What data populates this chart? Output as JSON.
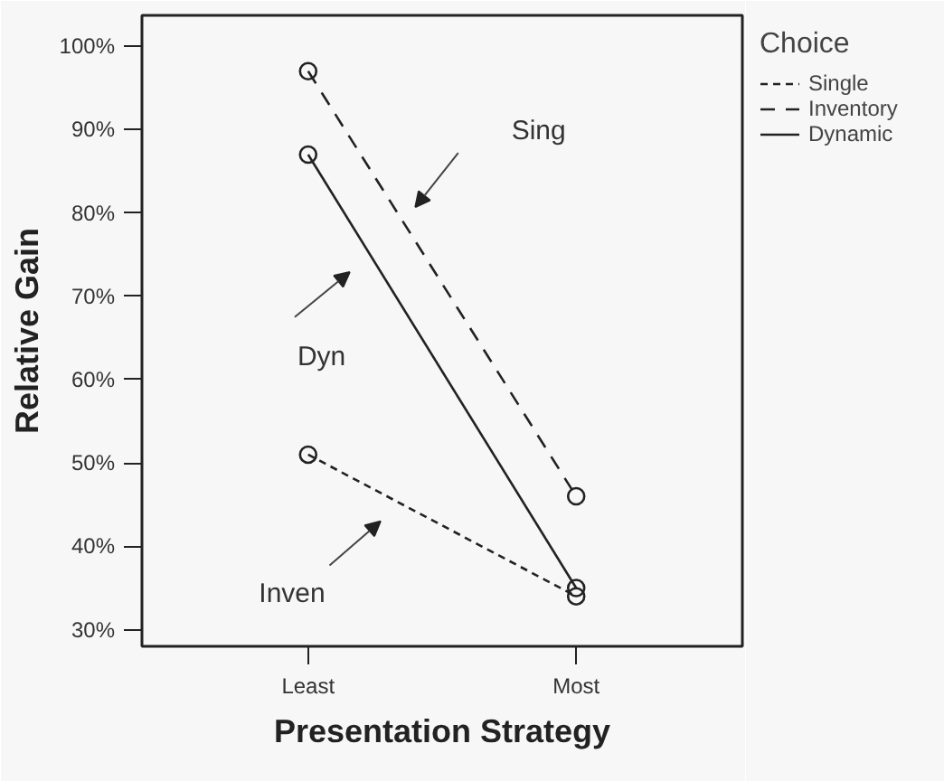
{
  "chart_data": {
    "type": "line",
    "xlabel": "Presentation Strategy",
    "ylabel": "Relative Gain",
    "legend_title": "Choice",
    "categories": [
      "Least",
      "Most"
    ],
    "series": [
      {
        "name": "Single",
        "color": "#222222",
        "line_style": "dotted",
        "values": [
          51,
          34
        ]
      },
      {
        "name": "Inventory",
        "color": "#222222",
        "line_style": "dashed",
        "values": [
          97,
          46
        ]
      },
      {
        "name": "Dynamic",
        "color": "#222222",
        "line_style": "solid",
        "values": [
          87,
          35
        ]
      }
    ],
    "ylim": [
      28,
      103.7
    ],
    "yticks": [
      {
        "value": 30,
        "label": "30%"
      },
      {
        "value": 40,
        "label": "40%"
      },
      {
        "value": 50,
        "label": "50%"
      },
      {
        "value": 60,
        "label": "60%"
      },
      {
        "value": 70,
        "label": "70%"
      },
      {
        "value": 80,
        "label": "80%"
      },
      {
        "value": 90,
        "label": "90%"
      },
      {
        "value": 100,
        "label": "100%"
      }
    ],
    "annotations": [
      "Sing",
      "Dyn",
      "Inven"
    ],
    "marker": "circle",
    "grid": false,
    "legend": "top right"
  }
}
